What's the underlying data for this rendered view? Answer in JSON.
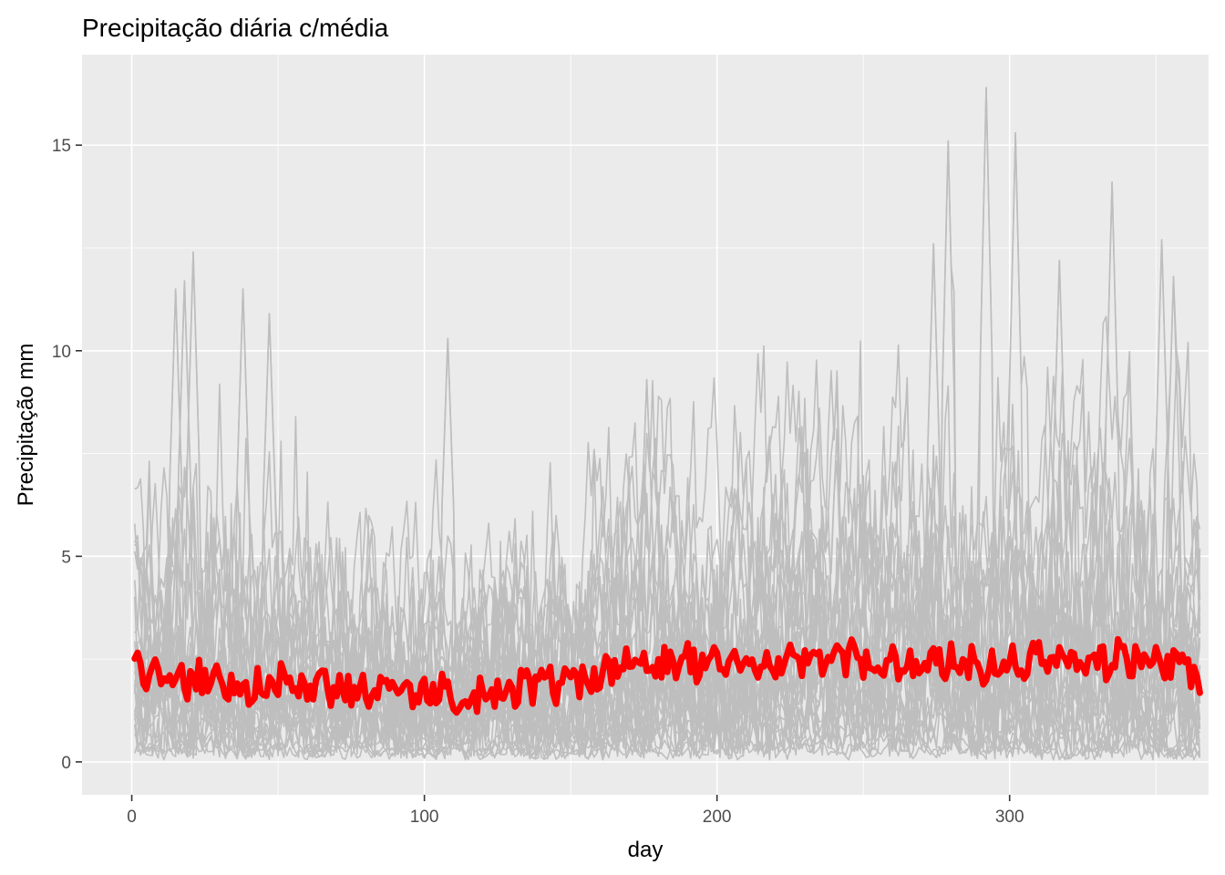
{
  "chart_data": {
    "type": "line",
    "title": "Precipitação diária c/média",
    "xlabel": "day",
    "ylabel": "Precipitação mm",
    "xlim": [
      -17,
      368
    ],
    "ylim": [
      -0.8,
      17.2
    ],
    "x_ticks": [
      0,
      100,
      200,
      300
    ],
    "y_ticks": [
      0,
      5,
      10,
      15
    ],
    "x_tick_labels": [
      "0",
      "100",
      "200",
      "300"
    ],
    "y_tick_labels": [
      "0",
      "5",
      "10",
      "15"
    ],
    "grid": true,
    "legend": "none",
    "panel_background": "#ebebeb",
    "series_colors": {
      "individual": "#bebebe",
      "mean": "#ff0000"
    },
    "series": [
      {
        "role": "individual",
        "count": 30,
        "description_note": "30 daily precipitation series, days 1-365, values roughly 0 to 16.4 mm",
        "peaks": [
          {
            "x": 15,
            "y": 11.5
          },
          {
            "x": 18,
            "y": 11.7
          },
          {
            "x": 21,
            "y": 12.4
          },
          {
            "x": 38,
            "y": 11.5
          },
          {
            "x": 47,
            "y": 10.9
          },
          {
            "x": 108,
            "y": 10.3
          },
          {
            "x": 176,
            "y": 9.3
          },
          {
            "x": 274,
            "y": 12.6
          },
          {
            "x": 279,
            "y": 15.1
          },
          {
            "x": 292,
            "y": 16.4
          },
          {
            "x": 302,
            "y": 15.3
          },
          {
            "x": 317,
            "y": 12.2
          },
          {
            "x": 335,
            "y": 14.1
          },
          {
            "x": 352,
            "y": 12.7
          },
          {
            "x": 356,
            "y": 11.8
          }
        ]
      },
      {
        "role": "mean",
        "anchors": [
          {
            "x": 1,
            "y": 2.3
          },
          {
            "x": 10,
            "y": 2.0
          },
          {
            "x": 20,
            "y": 2.0
          },
          {
            "x": 30,
            "y": 2.0
          },
          {
            "x": 40,
            "y": 1.8
          },
          {
            "x": 50,
            "y": 1.9
          },
          {
            "x": 60,
            "y": 1.8
          },
          {
            "x": 70,
            "y": 1.8
          },
          {
            "x": 80,
            "y": 1.8
          },
          {
            "x": 90,
            "y": 1.7
          },
          {
            "x": 100,
            "y": 1.7
          },
          {
            "x": 110,
            "y": 1.6
          },
          {
            "x": 120,
            "y": 1.7
          },
          {
            "x": 130,
            "y": 1.8
          },
          {
            "x": 140,
            "y": 1.9
          },
          {
            "x": 150,
            "y": 2.0
          },
          {
            "x": 160,
            "y": 2.1
          },
          {
            "x": 170,
            "y": 2.3
          },
          {
            "x": 180,
            "y": 2.4
          },
          {
            "x": 190,
            "y": 2.4
          },
          {
            "x": 200,
            "y": 2.4
          },
          {
            "x": 210,
            "y": 2.4
          },
          {
            "x": 220,
            "y": 2.4
          },
          {
            "x": 230,
            "y": 2.4
          },
          {
            "x": 240,
            "y": 2.5
          },
          {
            "x": 250,
            "y": 2.4
          },
          {
            "x": 260,
            "y": 2.4
          },
          {
            "x": 270,
            "y": 2.3
          },
          {
            "x": 280,
            "y": 2.5
          },
          {
            "x": 290,
            "y": 2.4
          },
          {
            "x": 300,
            "y": 2.4
          },
          {
            "x": 310,
            "y": 2.5
          },
          {
            "x": 320,
            "y": 2.4
          },
          {
            "x": 330,
            "y": 2.5
          },
          {
            "x": 340,
            "y": 2.5
          },
          {
            "x": 350,
            "y": 2.3
          },
          {
            "x": 360,
            "y": 2.5
          },
          {
            "x": 365,
            "y": 1.8
          }
        ]
      }
    ]
  }
}
